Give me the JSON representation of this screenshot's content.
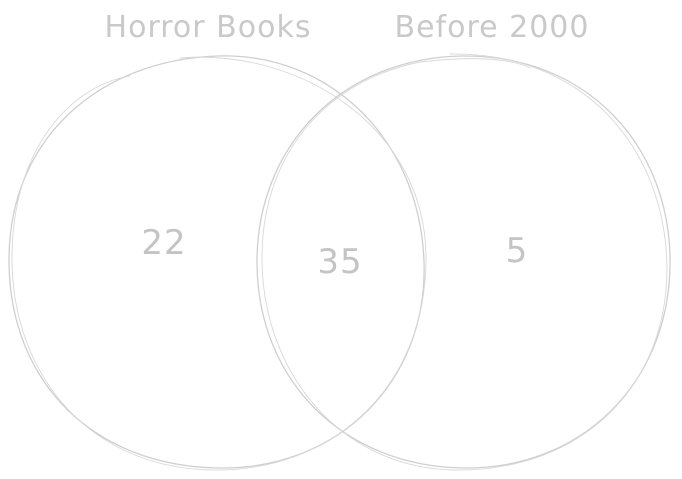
{
  "sets": [
    {
      "label": "Horror Books"
    },
    {
      "label": "Before 2000"
    }
  ],
  "regions": {
    "left_only": "22",
    "intersection": "35",
    "right_only": "5"
  }
}
